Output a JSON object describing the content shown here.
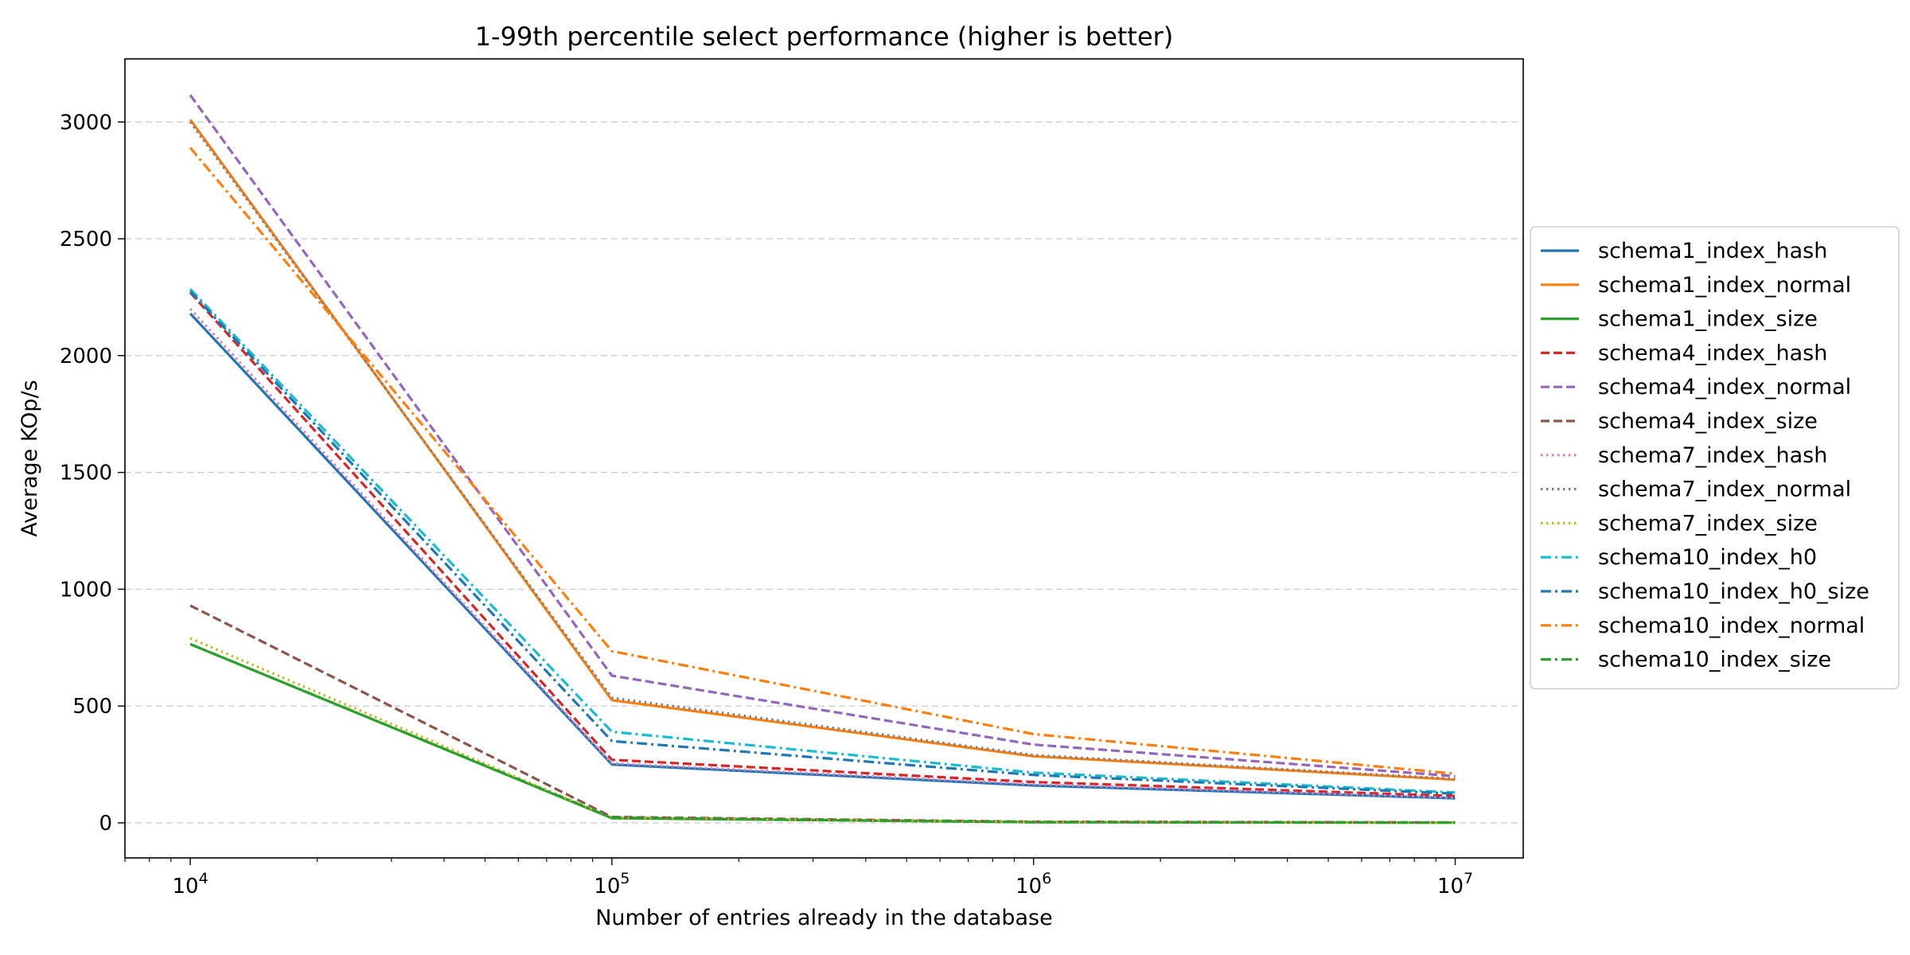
{
  "chart_data": {
    "type": "line",
    "title": "1-99th percentile select performance (higher is better)",
    "xlabel": "Number of entries already in the database",
    "ylabel": "Average KOp/s",
    "xscale": "log",
    "x": [
      10000,
      100000,
      1000000,
      10000000
    ],
    "x_tick_labels": [
      {
        "base": "10",
        "exp": "4"
      },
      {
        "base": "10",
        "exp": "5"
      },
      {
        "base": "10",
        "exp": "6"
      },
      {
        "base": "10",
        "exp": "7"
      }
    ],
    "xlim": [
      7000,
      14500000
    ],
    "ylim": [
      -150,
      3270
    ],
    "y_ticks": [
      0,
      500,
      1000,
      1500,
      2000,
      2500,
      3000
    ],
    "y_tick_labels": [
      "0",
      "500",
      "1000",
      "1500",
      "2000",
      "2500",
      "3000"
    ],
    "grid": "y-dashed",
    "legend_placement": "right-outside",
    "series": [
      {
        "name": "schema1_index_hash",
        "color": "#1f77b4",
        "dash": "solid",
        "values": [
          2180,
          250,
          160,
          105
        ]
      },
      {
        "name": "schema1_index_normal",
        "color": "#ff7f0e",
        "dash": "solid",
        "values": [
          3010,
          525,
          285,
          185
        ]
      },
      {
        "name": "schema1_index_size",
        "color": "#2ca02c",
        "dash": "solid",
        "values": [
          765,
          20,
          3,
          1
        ]
      },
      {
        "name": "schema4_index_hash",
        "color": "#d62728",
        "dash": "dashed",
        "values": [
          2270,
          270,
          175,
          115
        ]
      },
      {
        "name": "schema4_index_normal",
        "color": "#9467bd",
        "dash": "dashed",
        "values": [
          3115,
          630,
          335,
          200
        ]
      },
      {
        "name": "schema4_index_size",
        "color": "#8c564b",
        "dash": "dashed",
        "values": [
          930,
          25,
          5,
          2
        ]
      },
      {
        "name": "schema7_index_hash",
        "color": "#e377c2",
        "dash": "dotted",
        "values": [
          2200,
          255,
          165,
          108
        ]
      },
      {
        "name": "schema7_index_normal",
        "color": "#7f7f7f",
        "dash": "dotted",
        "values": [
          3000,
          535,
          290,
          188
        ]
      },
      {
        "name": "schema7_index_size",
        "color": "#bcbd22",
        "dash": "dotted",
        "values": [
          790,
          22,
          4,
          1
        ]
      },
      {
        "name": "schema10_index_h0",
        "color": "#17becf",
        "dash": "dashdot",
        "values": [
          2285,
          390,
          215,
          130
        ]
      },
      {
        "name": "schema10_index_h0_size",
        "color": "#1f77b4",
        "dash": "dashdot",
        "values": [
          2275,
          350,
          205,
          125
        ]
      },
      {
        "name": "schema10_index_normal",
        "color": "#ff7f0e",
        "dash": "dashdot",
        "values": [
          2890,
          735,
          380,
          210
        ]
      },
      {
        "name": "schema10_index_size",
        "color": "#2ca02c",
        "dash": "dashdot",
        "values": [
          765,
          22,
          3,
          1
        ]
      }
    ]
  }
}
